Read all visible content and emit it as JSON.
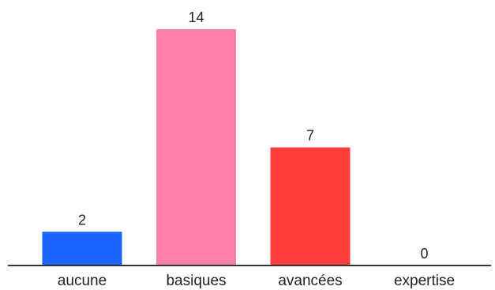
{
  "chart_data": {
    "type": "bar",
    "title": "",
    "xlabel": "",
    "ylabel": "",
    "categories": [
      "aucune",
      "basiques",
      "avancées",
      "expertise"
    ],
    "values": [
      2,
      14,
      7,
      0
    ],
    "colors": [
      "#1a66ff",
      "#ff80a8",
      "#ff3d3d",
      "#e6e6e6"
    ],
    "ylim": [
      0,
      14
    ],
    "grid": false,
    "legend": "none",
    "data_labels": true
  }
}
